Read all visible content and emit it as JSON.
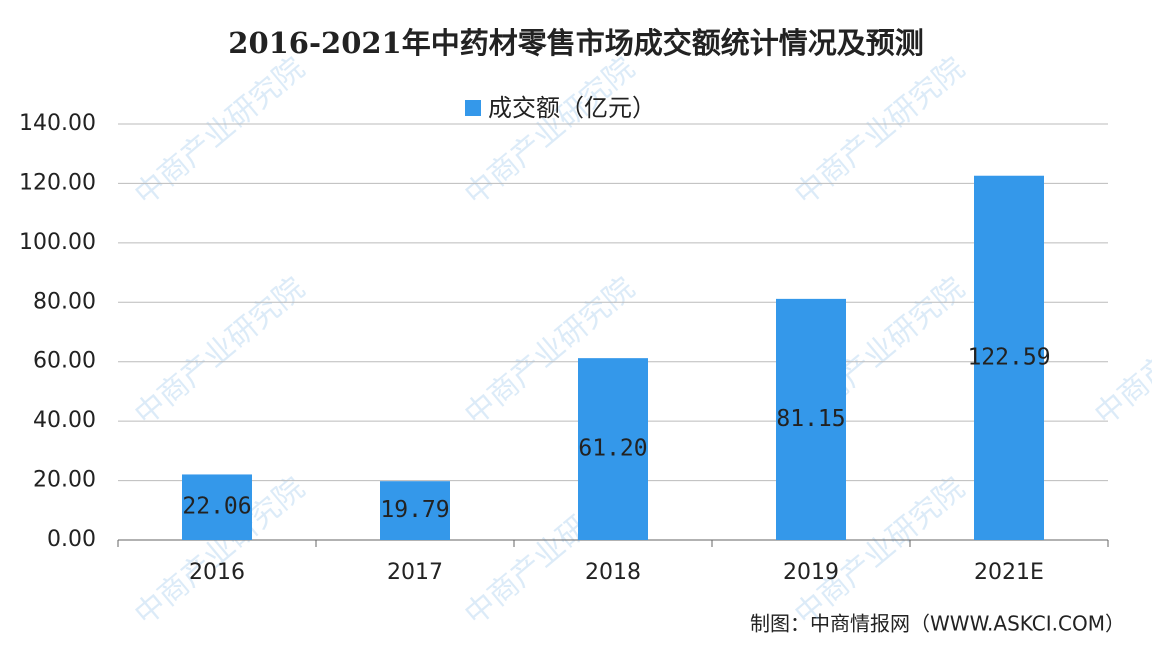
{
  "chart_data": {
    "type": "bar",
    "title": "2016-2021年中药材零售市场成交额统计情况及预测",
    "categories": [
      "2016",
      "2017",
      "2018",
      "2019",
      "2021E"
    ],
    "series": [
      {
        "name": "成交额（亿元）",
        "color": "#3498ea",
        "values": [
          22.06,
          19.79,
          61.2,
          81.15,
          122.59
        ],
        "value_labels": [
          "22.06",
          "19.79",
          "61.20",
          "81.15",
          "122.59"
        ]
      }
    ],
    "ylim": [
      0,
      140
    ],
    "yticks": [
      {
        "value": 0,
        "label": "0.00"
      },
      {
        "value": 20,
        "label": "20.00"
      },
      {
        "value": 40,
        "label": "40.00"
      },
      {
        "value": 60,
        "label": "60.00"
      },
      {
        "value": 80,
        "label": "80.00"
      },
      {
        "value": 100,
        "label": "100.00"
      },
      {
        "value": 120,
        "label": "120.00"
      },
      {
        "value": 140,
        "label": "140.00"
      }
    ],
    "grid": true,
    "legend": "top",
    "source": "制图：中商情报网（WWW.ASKCI.COM）",
    "watermark": "中商产业研究院"
  }
}
